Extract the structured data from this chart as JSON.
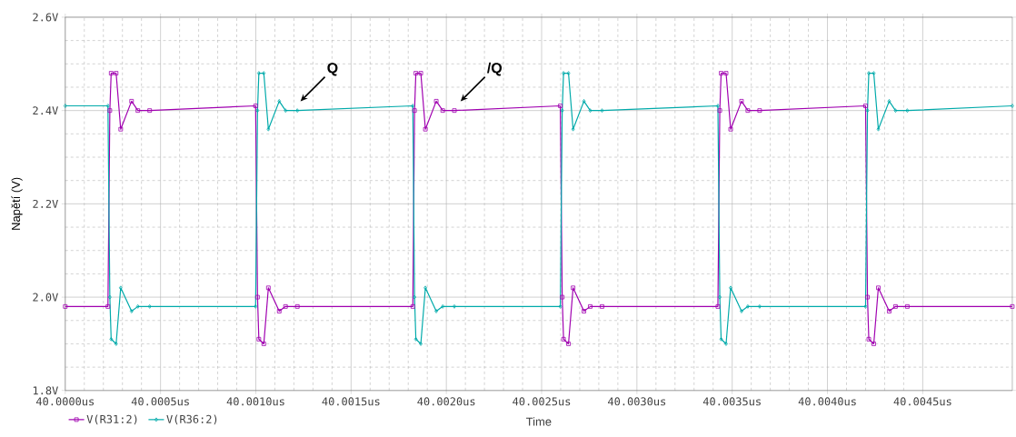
{
  "chart_data": {
    "type": "line",
    "xlabel": "Time",
    "ylabel": "Napětí (V)",
    "xlim": [
      40.0,
      40.00497
    ],
    "ylim": [
      1.8,
      2.6
    ],
    "xticks": [
      {
        "value": 40.0,
        "label": "40.0000us"
      },
      {
        "value": 40.0005,
        "label": "40.0005us"
      },
      {
        "value": 40.001,
        "label": "40.0010us"
      },
      {
        "value": 40.0015,
        "label": "40.0015us"
      },
      {
        "value": 40.002,
        "label": "40.0020us"
      },
      {
        "value": 40.0025,
        "label": "40.0025us"
      },
      {
        "value": 40.003,
        "label": "40.0030us"
      },
      {
        "value": 40.0035,
        "label": "40.0035us"
      },
      {
        "value": 40.004,
        "label": "40.0040us"
      },
      {
        "value": 40.0045,
        "label": "40.0045us"
      }
    ],
    "yticks": [
      {
        "value": 1.8,
        "label": "1.8V"
      },
      {
        "value": 2.0,
        "label": "2.0V"
      },
      {
        "value": 2.2,
        "label": "2.2V"
      },
      {
        "value": 2.4,
        "label": "2.4V"
      },
      {
        "value": 2.6,
        "label": "2.6V"
      }
    ],
    "grid": true,
    "legend": "bottom left",
    "x": [
      40.0,
      40.000224,
      40.000234,
      40.000241,
      40.000267,
      40.000291,
      40.000348,
      40.000381,
      40.000443,
      40.000999,
      40.001009,
      40.001016,
      40.001042,
      40.001066,
      40.001123,
      40.001156,
      40.001218,
      40.001824,
      40.001833,
      40.00184,
      40.001866,
      40.00189,
      40.001947,
      40.001981,
      40.002042,
      40.002598,
      40.002608,
      40.002615,
      40.002641,
      40.002665,
      40.002722,
      40.002755,
      40.002817,
      40.003425,
      40.003435,
      40.003442,
      40.003468,
      40.003492,
      40.003549,
      40.003582,
      40.003644,
      40.0042,
      40.00421,
      40.004217,
      40.004243,
      40.004267,
      40.004324,
      40.004357,
      40.004419,
      40.00497
    ],
    "series": [
      {
        "name": "V(R31:2)",
        "color": "#a000b0",
        "marker": "square",
        "values": [
          1.98,
          1.98,
          2.4,
          2.48,
          2.48,
          2.36,
          2.42,
          2.4,
          2.4,
          2.41,
          2.0,
          1.91,
          1.9,
          2.02,
          1.97,
          1.98,
          1.98,
          1.98,
          2.4,
          2.48,
          2.48,
          2.36,
          2.42,
          2.4,
          2.4,
          2.41,
          2.0,
          1.91,
          1.9,
          2.02,
          1.97,
          1.98,
          1.98,
          1.98,
          2.4,
          2.48,
          2.48,
          2.36,
          2.42,
          2.4,
          2.4,
          2.41,
          2.0,
          1.91,
          1.9,
          2.02,
          1.97,
          1.98,
          1.98,
          1.98
        ]
      },
      {
        "name": "V(R36:2)",
        "color": "#00aaaa",
        "marker": "diamond",
        "values": [
          2.41,
          2.41,
          2.0,
          1.91,
          1.9,
          2.02,
          1.97,
          1.98,
          1.98,
          1.98,
          2.4,
          2.48,
          2.48,
          2.36,
          2.42,
          2.4,
          2.4,
          2.41,
          2.0,
          1.91,
          1.9,
          2.02,
          1.97,
          1.98,
          1.98,
          1.98,
          2.4,
          2.48,
          2.48,
          2.36,
          2.42,
          2.4,
          2.4,
          2.41,
          2.0,
          1.91,
          1.9,
          2.02,
          1.97,
          1.98,
          1.98,
          1.98,
          2.4,
          2.48,
          2.48,
          2.36,
          2.42,
          2.4,
          2.4,
          2.41
        ]
      }
    ],
    "annotations": [
      {
        "text": "Q",
        "x": 40.00122,
        "y": 2.41
      },
      {
        "text": "/Q",
        "x": 40.00206,
        "y": 2.41
      }
    ]
  }
}
